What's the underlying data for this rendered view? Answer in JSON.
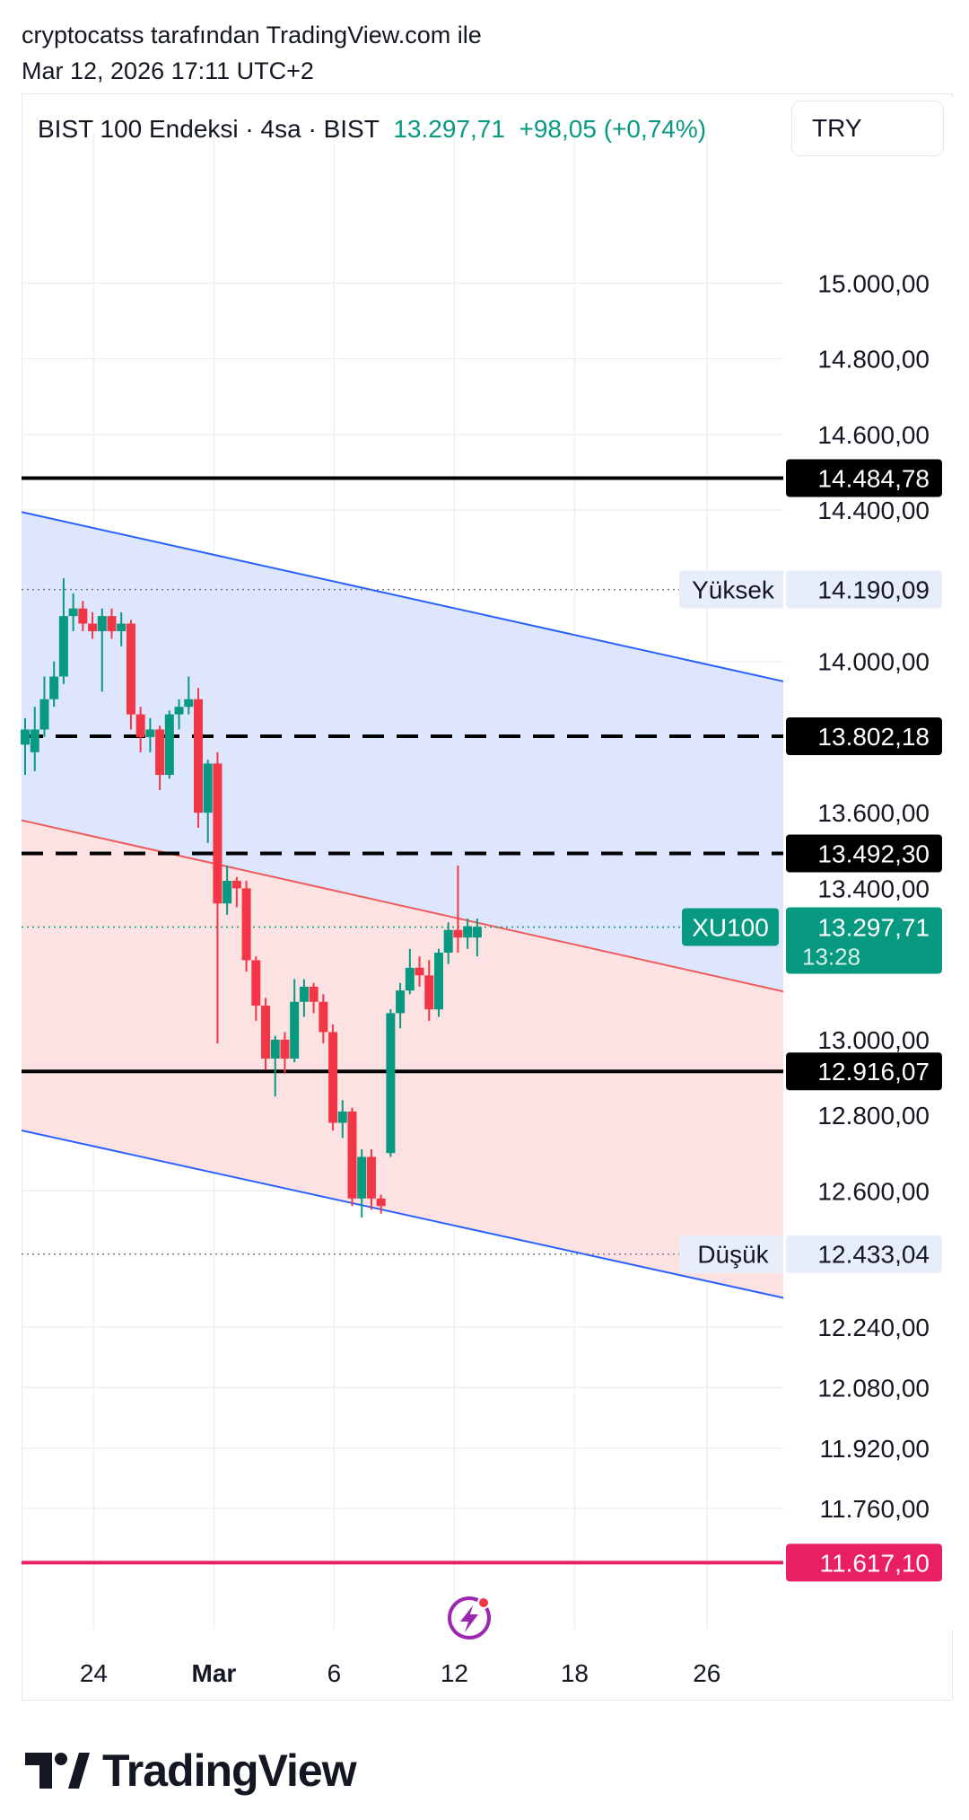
{
  "header": {
    "author_line": "cryptocatss tarafından TradingView.com ile",
    "timestamp": "Mar 12, 2026 17:11 UTC+2"
  },
  "symbol": {
    "name": "BIST 100 Endeksi",
    "interval": "4sa",
    "exchange": "BIST",
    "price": "13.297,71",
    "change": "+98,05 (+0,74%)"
  },
  "currency_button": "TRY",
  "footer": {
    "brand": "TradingView"
  },
  "colors": {
    "up": "#089981",
    "down": "#f23645",
    "channel_blue_fill": "#dde6fc",
    "channel_red_fill": "#fde2e3",
    "channel_blue_line": "#2962ff",
    "channel_red_line": "#f05b5b",
    "level_line": "#000000",
    "alert_line": "#e91e63"
  },
  "chart_data": {
    "type": "candlestick",
    "title": "BIST 100 Endeksi · 4sa · BIST",
    "ylim": [
      11440,
      15350
    ],
    "y_ticks": [
      {
        "value": 15000,
        "label": "15.000,00"
      },
      {
        "value": 14800,
        "label": "14.800,00"
      },
      {
        "value": 14600,
        "label": "14.600,00"
      },
      {
        "value": 14400,
        "label": "14.400,00"
      },
      {
        "value": 14000,
        "label": "14.000,00"
      },
      {
        "value": 13600,
        "label": "13.600,00"
      },
      {
        "value": 13400,
        "label": "13.400,00"
      },
      {
        "value": 13000,
        "label": "13.000,00"
      },
      {
        "value": 12800,
        "label": "12.800,00"
      },
      {
        "value": 12600,
        "label": "12.600,00"
      },
      {
        "value": 12240,
        "label": "12.240,00"
      },
      {
        "value": 12080,
        "label": "12.080,00"
      },
      {
        "value": 11920,
        "label": "11.920,00"
      },
      {
        "value": 11760,
        "label": "11.760,00"
      }
    ],
    "x_ticks": [
      {
        "t": 3.0,
        "label": "24",
        "bold": false
      },
      {
        "t": 8.0,
        "label": "Mar",
        "bold": true
      },
      {
        "t": 13.0,
        "label": "6",
        "bold": false
      },
      {
        "t": 18.0,
        "label": "12",
        "bold": false
      },
      {
        "t": 23.0,
        "label": "18",
        "bold": false
      },
      {
        "t": 28.5,
        "label": "26",
        "bold": false
      }
    ],
    "xlim": [
      0,
      32.2
    ],
    "candles": [
      {
        "t": 0.15,
        "o": 13780,
        "h": 13850,
        "l": 13700,
        "c": 13820
      },
      {
        "t": 0.55,
        "o": 13760,
        "h": 13880,
        "l": 13710,
        "c": 13820
      },
      {
        "t": 0.95,
        "o": 13820,
        "h": 13960,
        "l": 13800,
        "c": 13900
      },
      {
        "t": 1.35,
        "o": 13900,
        "h": 14000,
        "l": 13880,
        "c": 13960
      },
      {
        "t": 1.75,
        "o": 13960,
        "h": 14220,
        "l": 13940,
        "c": 14120
      },
      {
        "t": 2.15,
        "o": 14120,
        "h": 14180,
        "l": 14080,
        "c": 14140
      },
      {
        "t": 2.55,
        "o": 14140,
        "h": 14160,
        "l": 14080,
        "c": 14100
      },
      {
        "t": 2.95,
        "o": 14100,
        "h": 14130,
        "l": 14060,
        "c": 14080
      },
      {
        "t": 3.35,
        "o": 14080,
        "h": 14140,
        "l": 13920,
        "c": 14120
      },
      {
        "t": 3.75,
        "o": 14120,
        "h": 14140,
        "l": 14060,
        "c": 14080
      },
      {
        "t": 4.15,
        "o": 14080,
        "h": 14130,
        "l": 14040,
        "c": 14100
      },
      {
        "t": 4.55,
        "o": 14100,
        "h": 14110,
        "l": 13820,
        "c": 13860
      },
      {
        "t": 4.95,
        "o": 13860,
        "h": 13880,
        "l": 13760,
        "c": 13800
      },
      {
        "t": 5.35,
        "o": 13800,
        "h": 13850,
        "l": 13760,
        "c": 13820
      },
      {
        "t": 5.75,
        "o": 13820,
        "h": 13830,
        "l": 13660,
        "c": 13700
      },
      {
        "t": 6.15,
        "o": 13700,
        "h": 13870,
        "l": 13690,
        "c": 13860
      },
      {
        "t": 6.55,
        "o": 13860,
        "h": 13900,
        "l": 13820,
        "c": 13880
      },
      {
        "t": 6.95,
        "o": 13880,
        "h": 13960,
        "l": 13860,
        "c": 13900
      },
      {
        "t": 7.35,
        "o": 13900,
        "h": 13930,
        "l": 13560,
        "c": 13600
      },
      {
        "t": 7.75,
        "o": 13600,
        "h": 13740,
        "l": 13520,
        "c": 13730
      },
      {
        "t": 8.15,
        "o": 13730,
        "h": 13760,
        "l": 12990,
        "c": 13360
      },
      {
        "t": 8.55,
        "o": 13360,
        "h": 13460,
        "l": 13330,
        "c": 13420
      },
      {
        "t": 8.95,
        "o": 13420,
        "h": 13430,
        "l": 13350,
        "c": 13400
      },
      {
        "t": 9.35,
        "o": 13400,
        "h": 13420,
        "l": 13180,
        "c": 13210
      },
      {
        "t": 9.75,
        "o": 13210,
        "h": 13220,
        "l": 13050,
        "c": 13090
      },
      {
        "t": 10.15,
        "o": 13090,
        "h": 13110,
        "l": 12920,
        "c": 12950
      },
      {
        "t": 10.55,
        "o": 12950,
        "h": 13010,
        "l": 12850,
        "c": 13000
      },
      {
        "t": 10.95,
        "o": 13000,
        "h": 13020,
        "l": 12910,
        "c": 12950
      },
      {
        "t": 11.35,
        "o": 12950,
        "h": 13160,
        "l": 12940,
        "c": 13100
      },
      {
        "t": 11.75,
        "o": 13100,
        "h": 13160,
        "l": 13060,
        "c": 13140
      },
      {
        "t": 12.15,
        "o": 13140,
        "h": 13150,
        "l": 13070,
        "c": 13100
      },
      {
        "t": 12.55,
        "o": 13100,
        "h": 13120,
        "l": 12990,
        "c": 13020
      },
      {
        "t": 12.95,
        "o": 13020,
        "h": 13040,
        "l": 12760,
        "c": 12780
      },
      {
        "t": 13.35,
        "o": 12780,
        "h": 12840,
        "l": 12740,
        "c": 12810
      },
      {
        "t": 13.75,
        "o": 12810,
        "h": 12820,
        "l": 12560,
        "c": 12580
      },
      {
        "t": 14.15,
        "o": 12580,
        "h": 12710,
        "l": 12530,
        "c": 12690
      },
      {
        "t": 14.55,
        "o": 12690,
        "h": 12710,
        "l": 12550,
        "c": 12580
      },
      {
        "t": 14.95,
        "o": 12580,
        "h": 12590,
        "l": 12540,
        "c": 12560
      },
      {
        "t": 15.35,
        "o": 12700,
        "h": 13080,
        "l": 12690,
        "c": 13070
      },
      {
        "t": 15.75,
        "o": 13070,
        "h": 13150,
        "l": 13030,
        "c": 13130
      },
      {
        "t": 16.15,
        "o": 13130,
        "h": 13240,
        "l": 13120,
        "c": 13190
      },
      {
        "t": 16.55,
        "o": 13190,
        "h": 13220,
        "l": 13140,
        "c": 13170
      },
      {
        "t": 16.95,
        "o": 13170,
        "h": 13210,
        "l": 13050,
        "c": 13080
      },
      {
        "t": 17.35,
        "o": 13080,
        "h": 13240,
        "l": 13060,
        "c": 13230
      },
      {
        "t": 17.75,
        "o": 13230,
        "h": 13310,
        "l": 13200,
        "c": 13290
      },
      {
        "t": 18.15,
        "o": 13290,
        "h": 13460,
        "l": 13230,
        "c": 13270
      },
      {
        "t": 18.55,
        "o": 13270,
        "h": 13320,
        "l": 13240,
        "c": 13300
      },
      {
        "t": 18.95,
        "o": 13270,
        "h": 13320,
        "l": 13220,
        "c": 13298
      }
    ],
    "channels": [
      {
        "name": "blue-channel",
        "fill": "#dde6fc",
        "upper": {
          "t0": 0,
          "v0": 14395,
          "t1": 32.2,
          "v1": 13940
        },
        "lower": {
          "t0": 0,
          "v0": 12760,
          "t1": 32.2,
          "v1": 12310
        },
        "upper_color": "#2962ff",
        "lower_color": "#2962ff",
        "z": 0
      },
      {
        "name": "red-channel",
        "fill": "#fde2e3",
        "upper": {
          "t0": 0,
          "v0": 13580,
          "t1": 32.2,
          "v1": 13120
        },
        "lower": {
          "t0": 0,
          "v0": 12760,
          "t1": 32.2,
          "v1": 12310
        },
        "upper_color": "#f05b5b",
        "lower_color": null,
        "z": 1
      }
    ],
    "horizontal_lines": [
      {
        "value": 14484.78,
        "label": "14.484,78",
        "style": "solid",
        "color": "#000000",
        "tag_bg": "#000000",
        "tag_fg": "#ffffff"
      },
      {
        "value": 13802.18,
        "label": "13.802,18",
        "style": "dashed",
        "color": "#000000",
        "tag_bg": "#000000",
        "tag_fg": "#ffffff"
      },
      {
        "value": 13492.3,
        "label": "13.492,30",
        "style": "dashed",
        "color": "#000000",
        "tag_bg": "#000000",
        "tag_fg": "#ffffff"
      },
      {
        "value": 12916.07,
        "label": "12.916,07",
        "style": "solid",
        "color": "#000000",
        "tag_bg": "#000000",
        "tag_fg": "#ffffff"
      },
      {
        "value": 11617.1,
        "label": "11.617,10",
        "style": "solid",
        "color": "#e91e63",
        "tag_bg": "#e91e63",
        "tag_fg": "#ffffff"
      }
    ],
    "high_marker": {
      "value": 14190.09,
      "label": "14.190,09",
      "name": "Yüksek"
    },
    "low_marker": {
      "value": 12433.04,
      "label": "12.433,04",
      "name": "Düşük"
    },
    "last_price": {
      "value": 13297.71,
      "label": "13.297,71",
      "countdown": "13:28",
      "ticker": "XU100",
      "color": "#089981"
    }
  }
}
